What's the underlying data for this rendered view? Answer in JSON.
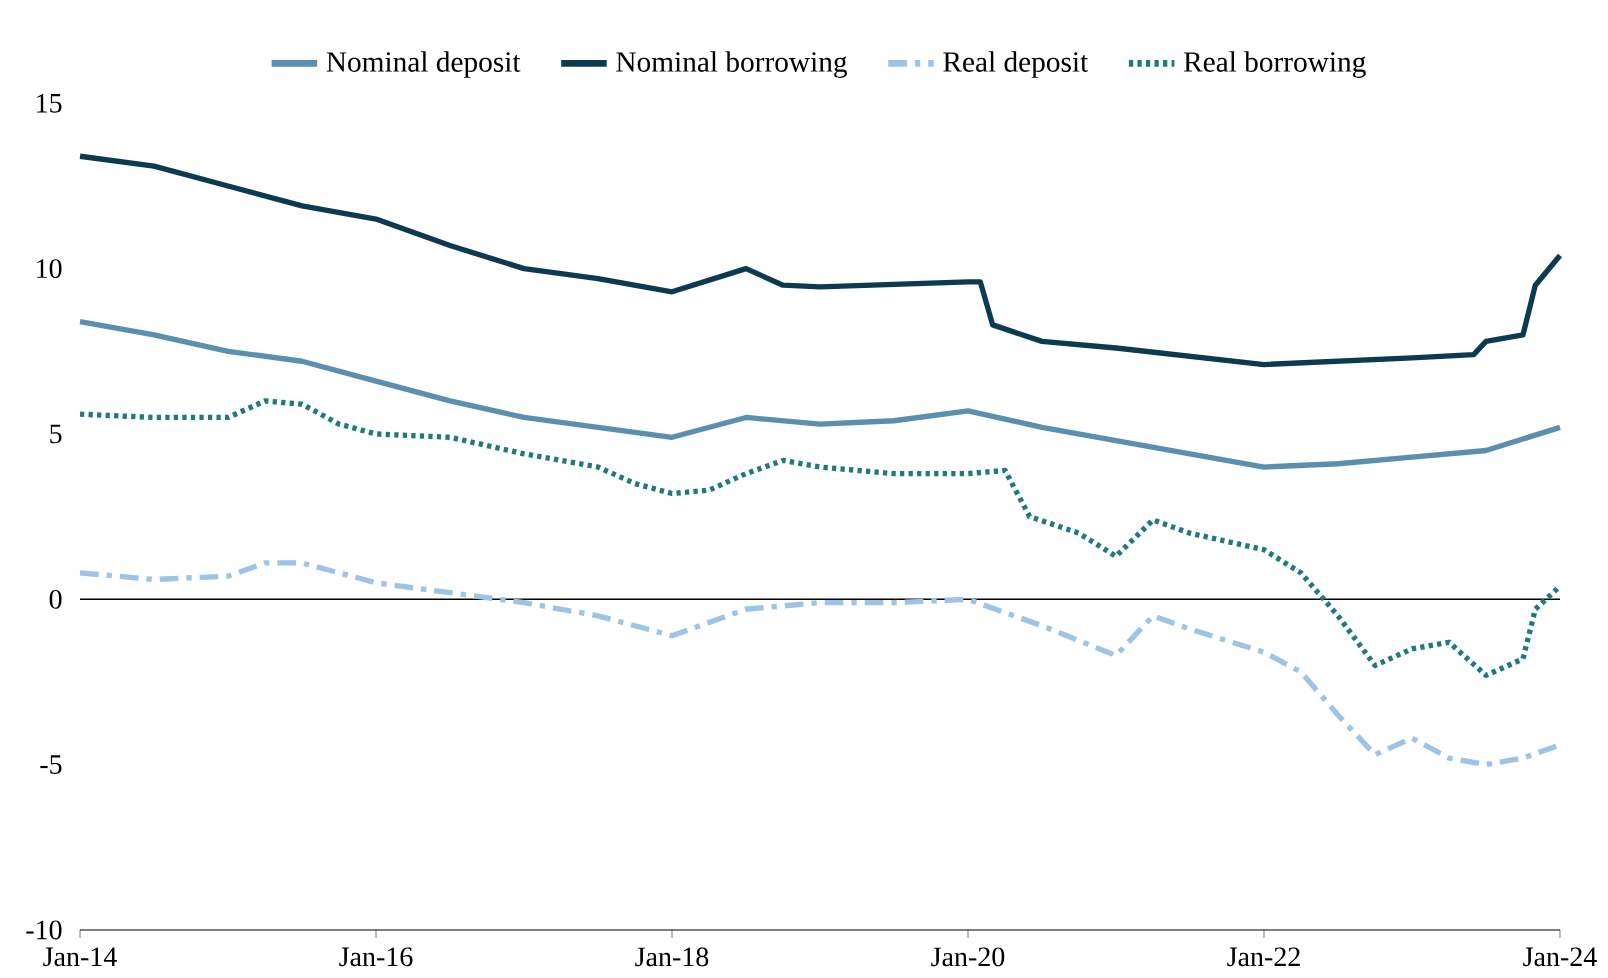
{
  "chart_data": {
    "type": "line",
    "xlim": [
      "2014-01",
      "2024-01"
    ],
    "ylim": [
      -10,
      15
    ],
    "xticks": [
      {
        "value": "2014-01",
        "label": "Jan-14"
      },
      {
        "value": "2016-01",
        "label": "Jan-16"
      },
      {
        "value": "2018-01",
        "label": "Jan-18"
      },
      {
        "value": "2020-01",
        "label": "Jan-20"
      },
      {
        "value": "2022-01",
        "label": "Jan-22"
      },
      {
        "value": "2024-01",
        "label": "Jan-24"
      }
    ],
    "yticks": [
      -10,
      -5,
      0,
      5,
      10,
      15
    ],
    "grid": false,
    "legend": "top",
    "ref_lines": [
      {
        "axis": "y",
        "value": 0,
        "color": "#000000"
      }
    ],
    "series": [
      {
        "name": "Nominal deposit",
        "color": "#5b8fb0",
        "line_style": "solid",
        "x": [
          "2014-01",
          "2014-07",
          "2015-01",
          "2015-07",
          "2016-01",
          "2016-07",
          "2017-01",
          "2017-07",
          "2018-01",
          "2018-07",
          "2019-01",
          "2019-07",
          "2020-01",
          "2020-07",
          "2021-01",
          "2021-07",
          "2022-01",
          "2022-07",
          "2023-01",
          "2023-07",
          "2024-01"
        ],
        "values": [
          8.4,
          8.0,
          7.5,
          7.2,
          6.6,
          6.0,
          5.5,
          5.2,
          4.9,
          5.5,
          5.3,
          5.4,
          5.7,
          5.2,
          4.8,
          4.4,
          4.0,
          4.1,
          4.3,
          4.5,
          5.2
        ]
      },
      {
        "name": "Nominal borrowing",
        "color": "#0b3a52",
        "line_style": "solid",
        "x": [
          "2014-01",
          "2014-07",
          "2015-01",
          "2015-07",
          "2016-01",
          "2016-07",
          "2017-01",
          "2017-07",
          "2018-01",
          "2018-07",
          "2018-10",
          "2019-01",
          "2020-01",
          "2020-02",
          "2020-03",
          "2020-07",
          "2021-01",
          "2022-01",
          "2023-01",
          "2023-06",
          "2023-07",
          "2023-10",
          "2023-11",
          "2024-01"
        ],
        "values": [
          13.4,
          13.1,
          12.5,
          11.9,
          11.5,
          10.7,
          10.0,
          9.7,
          9.3,
          10.0,
          9.5,
          9.45,
          9.6,
          9.6,
          8.3,
          7.8,
          7.6,
          7.1,
          7.3,
          7.4,
          7.8,
          8.0,
          9.5,
          10.4
        ]
      },
      {
        "name": "Real deposit",
        "color": "#9dc3e6",
        "line_style": "dashed",
        "x": [
          "2014-01",
          "2014-07",
          "2015-01",
          "2015-04",
          "2015-07",
          "2016-01",
          "2016-07",
          "2017-01",
          "2017-07",
          "2018-01",
          "2018-07",
          "2019-01",
          "2019-07",
          "2020-01",
          "2020-07",
          "2021-01",
          "2021-04",
          "2021-07",
          "2022-01",
          "2022-04",
          "2022-07",
          "2022-10",
          "2023-01",
          "2023-04",
          "2023-07",
          "2023-10",
          "2024-01"
        ],
        "values": [
          0.8,
          0.6,
          0.7,
          1.1,
          1.1,
          0.5,
          0.2,
          -0.1,
          -0.5,
          -1.1,
          -0.3,
          -0.1,
          -0.1,
          0.0,
          -0.8,
          -1.7,
          -0.5,
          -0.9,
          -1.6,
          -2.2,
          -3.5,
          -4.7,
          -4.2,
          -4.8,
          -5.0,
          -4.8,
          -4.4
        ]
      },
      {
        "name": "Real borrowing",
        "color": "#1f7a80",
        "line_style": "dotted",
        "x": [
          "2014-01",
          "2014-07",
          "2015-01",
          "2015-04",
          "2015-07",
          "2015-10",
          "2016-01",
          "2016-07",
          "2017-01",
          "2017-07",
          "2017-10",
          "2018-01",
          "2018-04",
          "2018-07",
          "2018-10",
          "2019-01",
          "2019-07",
          "2020-01",
          "2020-04",
          "2020-06",
          "2020-10",
          "2021-01",
          "2021-04",
          "2021-07",
          "2022-01",
          "2022-04",
          "2022-07",
          "2022-10",
          "2023-01",
          "2023-04",
          "2023-07",
          "2023-10",
          "2023-11",
          "2024-01"
        ],
        "values": [
          5.6,
          5.5,
          5.5,
          6.0,
          5.9,
          5.3,
          5.0,
          4.9,
          4.4,
          4.0,
          3.5,
          3.2,
          3.3,
          3.8,
          4.2,
          4.0,
          3.8,
          3.8,
          3.9,
          2.5,
          2.0,
          1.3,
          2.4,
          2.0,
          1.5,
          0.8,
          -0.5,
          -2.0,
          -1.5,
          -1.3,
          -2.3,
          -1.8,
          -0.3,
          0.4
        ]
      }
    ]
  }
}
